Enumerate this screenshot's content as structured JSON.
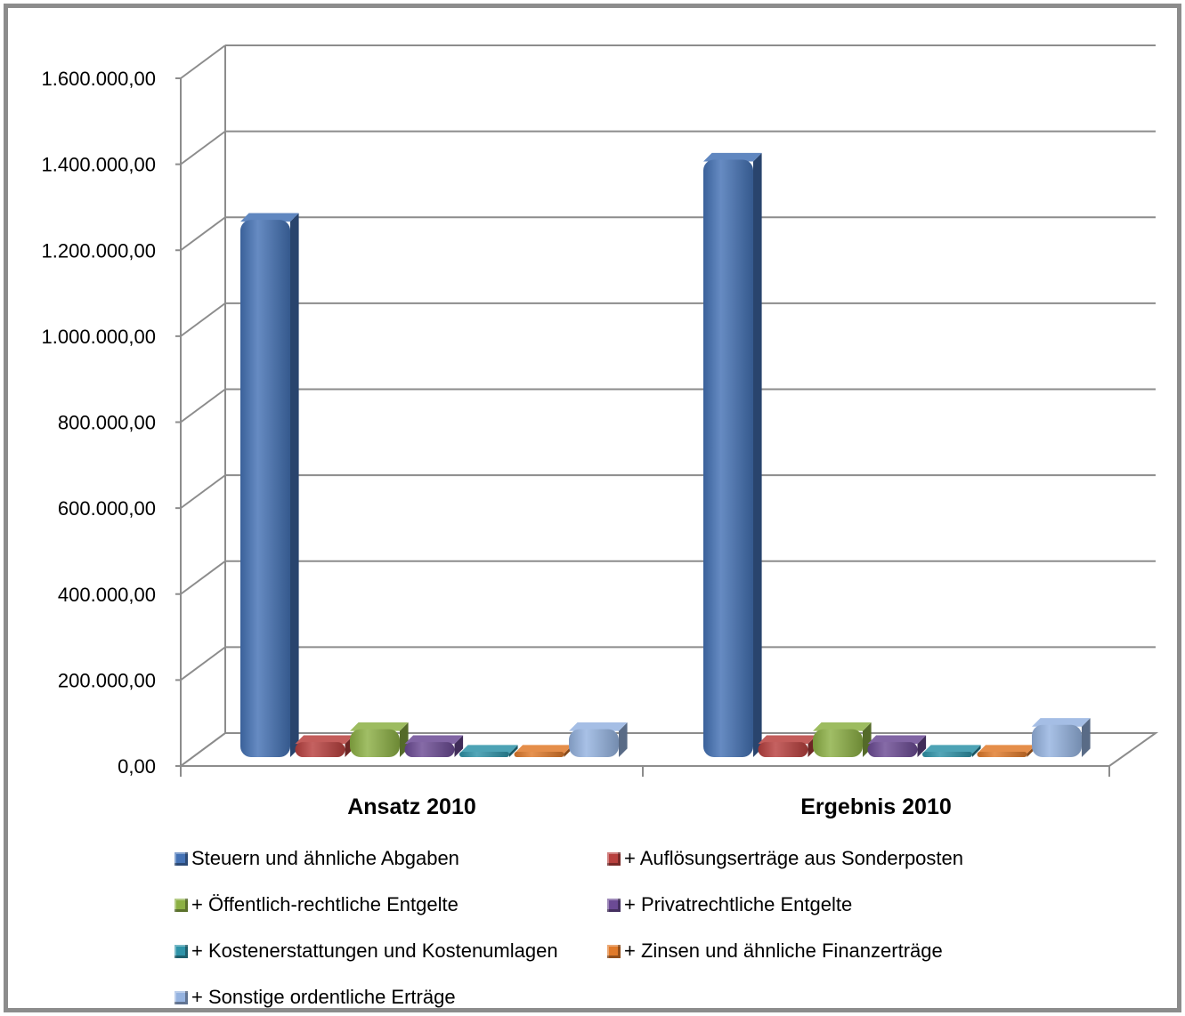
{
  "chart_data": {
    "type": "bar",
    "categories": [
      "Ansatz 2010",
      "Ergebnis 2010"
    ],
    "series": [
      {
        "name": "Steuern und ähnliche Abgaben",
        "values": [
          1250000,
          1390000
        ],
        "color": "#4472b5"
      },
      {
        "name": "+ Auflösungserträge aus Sonderposten",
        "values": [
          35000,
          35000
        ],
        "color": "#b8403e"
      },
      {
        "name": "+ Öffentlich-rechtliche Entgelte",
        "values": [
          65000,
          65000
        ],
        "color": "#8cb044"
      },
      {
        "name": "+ Privatrechtliche Entgelte",
        "values": [
          35000,
          35000
        ],
        "color": "#6b4a94"
      },
      {
        "name": "+ Kostenerstattungen und Kostenumlagen",
        "values": [
          3000,
          3000
        ],
        "color": "#2e93a8"
      },
      {
        "name": "+ Zinsen und ähnliche Finanzerträge",
        "values": [
          2000,
          2000
        ],
        "color": "#e07a2a"
      },
      {
        "name": "+ Sonstige ordentliche Erträge",
        "values": [
          65000,
          75000
        ],
        "color": "#95b3e0"
      }
    ],
    "yticks": [
      "0,00",
      "200.000,00",
      "400.000,00",
      "600.000,00",
      "800.000,00",
      "1.000.000,00",
      "1.200.000,00",
      "1.400.000,00",
      "1.600.000,00"
    ],
    "ylim": [
      0,
      1600000
    ],
    "grid": true,
    "legend": "bottom",
    "style": "3d-column"
  }
}
